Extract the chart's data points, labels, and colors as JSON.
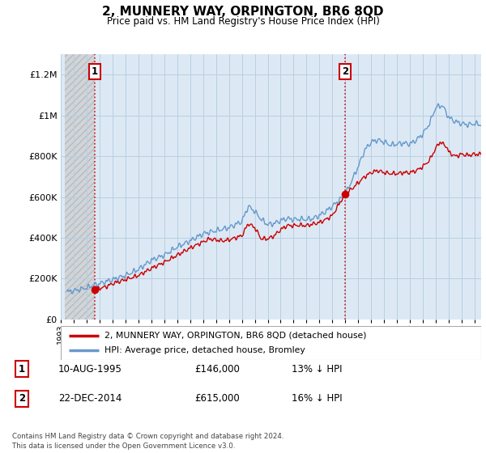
{
  "title": "2, MUNNERY WAY, ORPINGTON, BR6 8QD",
  "subtitle": "Price paid vs. HM Land Registry's House Price Index (HPI)",
  "ylim": [
    0,
    1300000
  ],
  "xlim_start": 1993.3,
  "xlim_end": 2025.5,
  "yticks": [
    0,
    200000,
    400000,
    600000,
    800000,
    1000000,
    1200000
  ],
  "ytick_labels": [
    "£0",
    "£200K",
    "£400K",
    "£600K",
    "£800K",
    "£1M",
    "£1.2M"
  ],
  "sale1_date": 1995.61,
  "sale1_price": 146000,
  "sale2_date": 2014.98,
  "sale2_price": 615000,
  "plot_bg": "#dce9f5",
  "hatch_bg": "#c8c8c8",
  "grid_color": "#b8cfe0",
  "hpi_color": "#6699cc",
  "price_color": "#cc0000",
  "legend1_label": "2, MUNNERY WAY, ORPINGTON, BR6 8QD (detached house)",
  "legend2_label": "HPI: Average price, detached house, Bromley",
  "footnote": "Contains HM Land Registry data © Crown copyright and database right 2024.\nThis data is licensed under the Open Government Licence v3.0.",
  "table_row1": [
    "1",
    "10-AUG-1995",
    "£146,000",
    "13% ↓ HPI"
  ],
  "table_row2": [
    "2",
    "22-DEC-2014",
    "£615,000",
    "16% ↓ HPI"
  ]
}
